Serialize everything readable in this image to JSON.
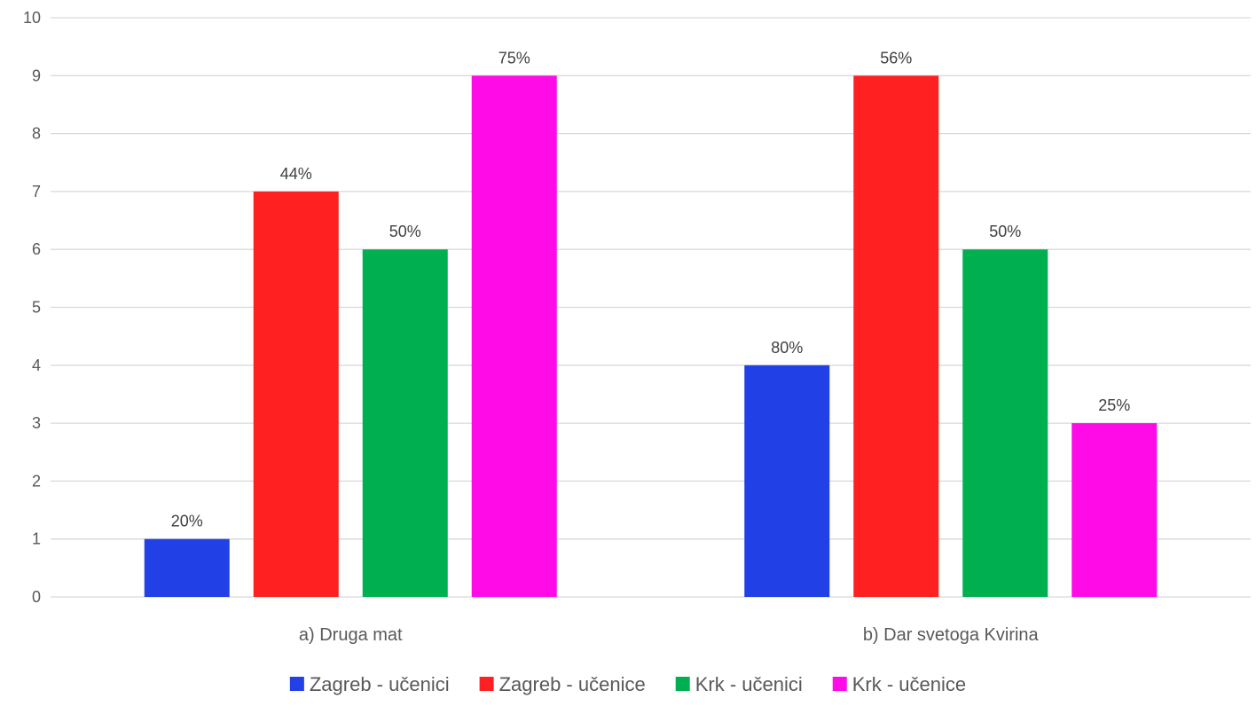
{
  "chart_data": {
    "type": "bar",
    "categories": [
      "a) Druga mat",
      "b) Dar svetoga Kvirina"
    ],
    "series": [
      {
        "name": "Zagreb - učenici",
        "color": "#2140e6",
        "values": [
          1,
          4
        ],
        "labels": [
          "20%",
          "80%"
        ]
      },
      {
        "name": "Zagreb - učenice",
        "color": "#ff2121",
        "values": [
          7,
          9
        ],
        "labels": [
          "44%",
          "56%"
        ]
      },
      {
        "name": "Krk - učenici",
        "color": "#00b050",
        "values": [
          6,
          6
        ],
        "labels": [
          "50%",
          "50%"
        ]
      },
      {
        "name": "Krk - učenice",
        "color": "#ff0be8",
        "values": [
          9,
          3
        ],
        "labels": [
          "75%",
          "25%"
        ]
      }
    ],
    "ylim": [
      0,
      10
    ],
    "yticks": [
      0,
      1,
      2,
      3,
      4,
      5,
      6,
      7,
      8,
      9,
      10
    ],
    "grid": true,
    "legend_position": "bottom",
    "title": "",
    "xlabel": "",
    "ylabel": ""
  }
}
